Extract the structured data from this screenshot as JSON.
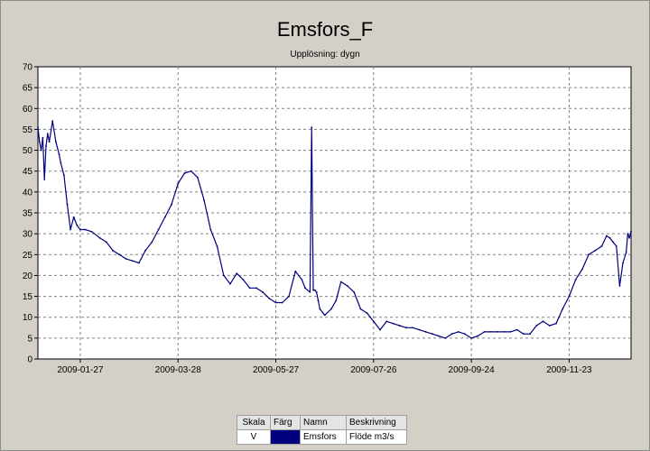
{
  "title": "Emsfors_F",
  "subtitle": "Upplösning: dygn",
  "legend": {
    "headers": {
      "scale": "Skala",
      "color": "Färg",
      "name": "Namn",
      "description": "Beskrivning"
    },
    "rows": [
      {
        "scale": "V",
        "color": "#00007f",
        "name": "Emsfors",
        "description": "Flöde m3/s"
      }
    ]
  },
  "chart_data": {
    "type": "line",
    "title": "Emsfors_F",
    "subtitle": "Upplösning: dygn",
    "xlabel": "",
    "ylabel": "",
    "ylim": [
      0,
      70
    ],
    "xlim": [
      "2009-01-01",
      "2009-12-31"
    ],
    "y_ticks": [
      0,
      5,
      10,
      15,
      20,
      25,
      30,
      35,
      40,
      45,
      50,
      55,
      60,
      65,
      70
    ],
    "x_ticks": [
      "2009-01-27",
      "2009-03-28",
      "2009-05-27",
      "2009-07-26",
      "2009-09-24",
      "2009-11-23"
    ],
    "grid": true,
    "legend_position": "bottom-center",
    "series": [
      {
        "name": "Emsfors",
        "color": "#00007f",
        "x": [
          "2009-01-01",
          "2009-01-02",
          "2009-01-03",
          "2009-01-04",
          "2009-01-05",
          "2009-01-06",
          "2009-01-07",
          "2009-01-08",
          "2009-01-10",
          "2009-01-12",
          "2009-01-14",
          "2009-01-15",
          "2009-01-17",
          "2009-01-19",
          "2009-01-21",
          "2009-01-23",
          "2009-01-25",
          "2009-01-27",
          "2009-01-30",
          "2009-02-03",
          "2009-02-08",
          "2009-02-12",
          "2009-02-16",
          "2009-02-20",
          "2009-02-24",
          "2009-02-28",
          "2009-03-04",
          "2009-03-08",
          "2009-03-12",
          "2009-03-16",
          "2009-03-20",
          "2009-03-24",
          "2009-03-28",
          "2009-04-01",
          "2009-04-05",
          "2009-04-09",
          "2009-04-13",
          "2009-04-17",
          "2009-04-21",
          "2009-04-25",
          "2009-04-29",
          "2009-05-03",
          "2009-05-07",
          "2009-05-11",
          "2009-05-15",
          "2009-05-19",
          "2009-05-23",
          "2009-05-27",
          "2009-05-31",
          "2009-06-04",
          "2009-06-08",
          "2009-06-12",
          "2009-06-14",
          "2009-06-17",
          "2009-06-18",
          "2009-06-19",
          "2009-06-20",
          "2009-06-21",
          "2009-06-22",
          "2009-06-23",
          "2009-06-26",
          "2009-06-30",
          "2009-07-03",
          "2009-07-06",
          "2009-07-10",
          "2009-07-14",
          "2009-07-18",
          "2009-07-22",
          "2009-07-26",
          "2009-07-30",
          "2009-08-03",
          "2009-08-07",
          "2009-08-11",
          "2009-08-15",
          "2009-08-19",
          "2009-08-23",
          "2009-08-27",
          "2009-08-31",
          "2009-09-04",
          "2009-09-08",
          "2009-09-12",
          "2009-09-16",
          "2009-09-20",
          "2009-09-24",
          "2009-09-28",
          "2009-10-02",
          "2009-10-06",
          "2009-10-10",
          "2009-10-14",
          "2009-10-18",
          "2009-10-22",
          "2009-10-26",
          "2009-10-30",
          "2009-11-03",
          "2009-11-07",
          "2009-11-11",
          "2009-11-15",
          "2009-11-19",
          "2009-11-23",
          "2009-11-27",
          "2009-12-01",
          "2009-12-05",
          "2009-12-09",
          "2009-12-13",
          "2009-12-16",
          "2009-12-18",
          "2009-12-20",
          "2009-12-22",
          "2009-12-24",
          "2009-12-26",
          "2009-12-28",
          "2009-12-29",
          "2009-12-30",
          "2009-12-31"
        ],
        "y": [
          55.5,
          52,
          50,
          53,
          43,
          51,
          54,
          52,
          57,
          52,
          49,
          47,
          44,
          37,
          31,
          34,
          32,
          31,
          31,
          30.5,
          29,
          28,
          26,
          25,
          24,
          23.5,
          23,
          26,
          28,
          31,
          34,
          37,
          42,
          44.5,
          45,
          43.5,
          38,
          31,
          27,
          20,
          18,
          20.5,
          19,
          17,
          17,
          16,
          14.5,
          13.5,
          13.5,
          15,
          21,
          19,
          17,
          16,
          55.5,
          16.5,
          16.5,
          16,
          14,
          12,
          10.5,
          12,
          14,
          18.5,
          17.5,
          16,
          12,
          11,
          9,
          7,
          9,
          8.5,
          8,
          7.5,
          7.5,
          7,
          6.5,
          6,
          5.5,
          5,
          6,
          6.5,
          6,
          5,
          5.5,
          6.5,
          6.5,
          6.5,
          6.5,
          6.5,
          7,
          6,
          6,
          8,
          9,
          8,
          8.5,
          12,
          15,
          19,
          21.5,
          25,
          26,
          27,
          29.5,
          29,
          28,
          27,
          17.5,
          23,
          25.5,
          30,
          29,
          30.5
        ]
      }
    ]
  }
}
